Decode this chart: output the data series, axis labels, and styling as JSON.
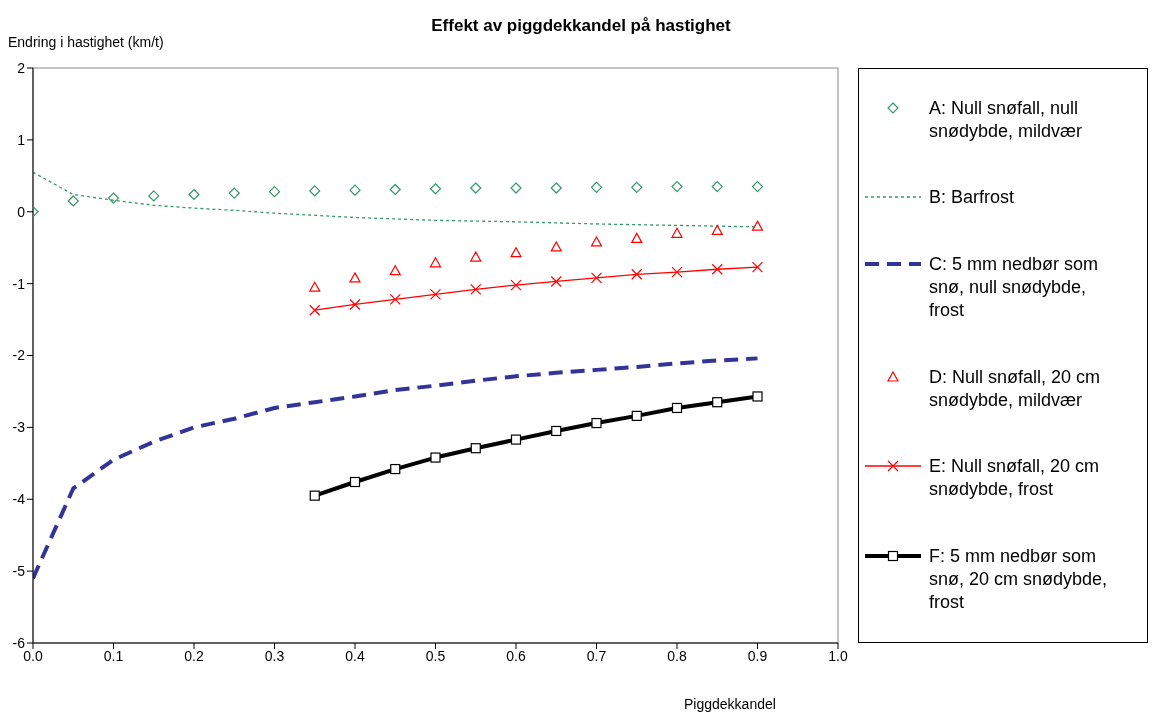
{
  "chart_data": {
    "type": "line",
    "title": "Effekt av piggdekkandel på hastighet",
    "xlabel": "Piggdekkandel",
    "ylabel": "Endring i hastighet (km/t)",
    "xlim": [
      0,
      1
    ],
    "xticks": [
      {
        "value": 0,
        "label": "0.0"
      },
      {
        "value": 0.1,
        "label": "0.1"
      },
      {
        "value": 0.2,
        "label": "0.2"
      },
      {
        "value": 0.3,
        "label": "0.3"
      },
      {
        "value": 0.4,
        "label": "0.4"
      },
      {
        "value": 0.5,
        "label": "0.5"
      },
      {
        "value": 0.6,
        "label": "0.6"
      },
      {
        "value": 0.7,
        "label": "0.7"
      },
      {
        "value": 0.8,
        "label": "0.8"
      },
      {
        "value": 0.9,
        "label": "0.9"
      },
      {
        "value": 1,
        "label": "1.0"
      }
    ],
    "ylim": [
      -6,
      2
    ],
    "yticks": [
      -6,
      -5,
      -4,
      -3,
      -2,
      -1,
      0,
      1,
      2
    ],
    "grid": false,
    "legend": "right",
    "series": [
      {
        "name": "A: Null snøfall, null snødybde, mildvær",
        "type": "scatter",
        "marker": "diamond",
        "color": "#339966",
        "x": [
          0,
          0.05,
          0.1,
          0.15,
          0.2,
          0.25,
          0.3,
          0.35,
          0.4,
          0.45,
          0.5,
          0.55,
          0.6,
          0.65,
          0.7,
          0.75,
          0.8,
          0.85,
          0.9
        ],
        "values": [
          0,
          0.15,
          0.19,
          0.22,
          0.24,
          0.26,
          0.28,
          0.29,
          0.3,
          0.31,
          0.32,
          0.33,
          0.33,
          0.33,
          0.34,
          0.34,
          0.35,
          0.35,
          0.35
        ]
      },
      {
        "name": "B: Barfrost",
        "marker": "none",
        "line_style": "dotted",
        "color": "#339966",
        "x": [
          0,
          0.05,
          0.1,
          0.15,
          0.2,
          0.25,
          0.3,
          0.35,
          0.4,
          0.5,
          0.6,
          0.7,
          0.8,
          0.9
        ],
        "values": [
          0.55,
          0.24,
          0.16,
          0.09,
          0.05,
          0.02,
          -0.02,
          -0.05,
          -0.08,
          -0.12,
          -0.14,
          -0.17,
          -0.19,
          -0.21
        ]
      },
      {
        "name": "C: 5 mm nedbør som snø, null snødybde, frost",
        "marker": "none",
        "line_style": "dashed",
        "color": "#333399",
        "x": [
          0,
          0.05,
          0.1,
          0.15,
          0.2,
          0.25,
          0.3,
          0.35,
          0.4,
          0.45,
          0.5,
          0.55,
          0.6,
          0.65,
          0.7,
          0.75,
          0.8,
          0.85,
          0.9
        ],
        "values": [
          -5.1,
          -3.85,
          -3.45,
          -3.2,
          -3.0,
          -2.88,
          -2.73,
          -2.65,
          -2.57,
          -2.48,
          -2.42,
          -2.35,
          -2.29,
          -2.24,
          -2.2,
          -2.16,
          -2.11,
          -2.07,
          -2.04
        ]
      },
      {
        "name": "D: Null snøfall, 20 cm snødybde, mildvær",
        "type": "scatter",
        "marker": "triangle",
        "color": "#ff0000",
        "x": [
          0.35,
          0.4,
          0.45,
          0.5,
          0.55,
          0.6,
          0.65,
          0.7,
          0.75,
          0.8,
          0.85,
          0.9
        ],
        "values": [
          -1.05,
          -0.92,
          -0.82,
          -0.71,
          -0.63,
          -0.57,
          -0.49,
          -0.42,
          -0.37,
          -0.3,
          -0.26,
          -0.2
        ]
      },
      {
        "name": "E: Null snøfall, 20 cm snødybde, frost",
        "marker": "cross",
        "line_style": "solid",
        "color": "#ff0000",
        "x": [
          0.35,
          0.4,
          0.45,
          0.5,
          0.55,
          0.6,
          0.65,
          0.7,
          0.75,
          0.8,
          0.85,
          0.9
        ],
        "values": [
          -1.37,
          -1.29,
          -1.22,
          -1.15,
          -1.08,
          -1.02,
          -0.97,
          -0.92,
          -0.87,
          -0.84,
          -0.8,
          -0.77
        ]
      },
      {
        "name": "F: 5 mm nedbør som snø, 20 cm snødybde, frost",
        "marker": "square",
        "line_style": "solid",
        "color": "#000000",
        "x": [
          0.35,
          0.4,
          0.45,
          0.5,
          0.55,
          0.6,
          0.65,
          0.7,
          0.75,
          0.8,
          0.85,
          0.9
        ],
        "values": [
          -3.95,
          -3.76,
          -3.58,
          -3.42,
          -3.29,
          -3.17,
          -3.05,
          -2.94,
          -2.84,
          -2.73,
          -2.65,
          -2.57
        ]
      }
    ]
  }
}
